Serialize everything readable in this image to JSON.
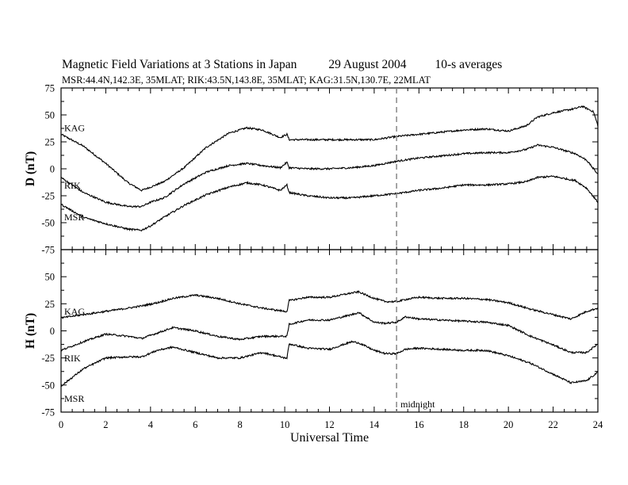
{
  "header": {
    "title": "Magnetic Field Variations at 3 Stations in Japan",
    "date": "29  August  2004",
    "averaging": "10-s averages",
    "stations_line": "MSR:44.4N,142.3E, 35MLAT;  RIK:43.5N,143.8E, 35MLAT;  KAG:31.5N,130.7E, 22MLAT"
  },
  "chart_data": [
    {
      "type": "line",
      "panel": "D",
      "ylabel": "D (nT)",
      "xlabel": "",
      "xlim": [
        0,
        24
      ],
      "ylim": [
        -75,
        75
      ],
      "yticks": [
        75,
        50,
        25,
        0,
        -25,
        -50,
        -75
      ],
      "xticks": [
        0,
        2,
        4,
        6,
        8,
        10,
        12,
        14,
        16,
        18,
        20,
        22,
        24
      ],
      "series": [
        {
          "name": "KAG",
          "x": [
            0,
            1,
            2,
            3,
            3.6,
            4,
            4.6,
            5.5,
            6.5,
            7.5,
            8.3,
            9,
            9.8,
            10.1,
            10.2,
            11,
            12,
            13,
            14,
            15,
            16,
            17,
            18,
            19,
            20,
            20.8,
            21.3,
            22,
            23,
            23.3,
            23.8,
            24
          ],
          "y": [
            32,
            21,
            5,
            -13,
            -20,
            -17,
            -12,
            1,
            20,
            33,
            38,
            36,
            29,
            32,
            27,
            27,
            27,
            27,
            27,
            30,
            32,
            34,
            36,
            37,
            35,
            40,
            48,
            52,
            56,
            58,
            53,
            40
          ]
        },
        {
          "name": "RIK",
          "x": [
            0,
            1,
            2,
            3,
            3.6,
            4,
            4.6,
            5.5,
            6.5,
            7.5,
            8.3,
            9,
            9.8,
            10.1,
            10.2,
            11,
            12,
            13,
            14,
            15,
            16,
            17,
            18,
            19,
            20,
            20.8,
            21.3,
            22,
            23,
            23.5,
            24
          ],
          "y": [
            -8,
            -22,
            -31,
            -35,
            -35,
            -31,
            -27,
            -14,
            -3,
            3,
            5,
            3,
            1,
            6,
            1,
            0,
            0,
            1,
            3,
            7,
            10,
            12,
            14,
            15,
            15,
            18,
            22,
            20,
            14,
            8,
            -5
          ]
        },
        {
          "name": "MSR",
          "x": [
            0,
            1,
            2,
            3,
            3.6,
            4,
            4.6,
            5.5,
            6.5,
            7.5,
            8.3,
            9,
            9.8,
            10.1,
            10.2,
            11,
            12,
            13,
            14,
            15,
            16,
            17,
            18,
            19,
            20,
            20.8,
            21.3,
            22,
            23,
            23.5,
            24
          ],
          "y": [
            -33,
            -45,
            -51,
            -56,
            -57,
            -53,
            -45,
            -34,
            -24,
            -17,
            -13,
            -15,
            -20,
            -15,
            -22,
            -25,
            -27,
            -27,
            -25,
            -23,
            -20,
            -18,
            -15,
            -15,
            -14,
            -12,
            -8,
            -7,
            -11,
            -18,
            -31
          ]
        }
      ]
    },
    {
      "type": "line",
      "panel": "H",
      "ylabel": "H (nT)",
      "xlabel": "Universal Time",
      "xlim": [
        0,
        24
      ],
      "ylim": [
        -75,
        75
      ],
      "yticks": [
        75,
        50,
        25,
        0,
        -25,
        -50,
        -75
      ],
      "xticks": [
        0,
        2,
        4,
        6,
        8,
        10,
        12,
        14,
        16,
        18,
        20,
        22,
        24
      ],
      "series": [
        {
          "name": "KAG",
          "x": [
            0,
            1,
            2,
            3,
            3.6,
            4.3,
            5,
            6,
            7,
            8,
            9,
            10,
            10.1,
            10.2,
            11,
            12,
            13,
            13.3,
            14,
            14.5,
            15,
            15.4,
            16,
            17,
            18,
            19,
            20,
            21,
            22,
            22.8,
            23.5,
            24
          ],
          "y": [
            12,
            15,
            18,
            21,
            23,
            26,
            30,
            33,
            30,
            25,
            21,
            18,
            18,
            28,
            31,
            31,
            35,
            36,
            30,
            27,
            27,
            29,
            31,
            30,
            30,
            29,
            26,
            20,
            15,
            11,
            18,
            21
          ]
        },
        {
          "name": "RIK",
          "x": [
            0,
            1,
            2,
            3,
            3.6,
            4.3,
            5,
            6,
            7,
            8,
            9,
            10,
            10.1,
            10.2,
            11,
            12,
            13,
            13.3,
            14,
            14.5,
            15,
            15.4,
            16,
            17,
            18,
            19,
            20,
            21,
            22,
            22.8,
            23.5,
            24
          ],
          "y": [
            -18,
            -10,
            -3,
            -5,
            -7,
            -2,
            3,
            0,
            -5,
            -8,
            -5,
            -5,
            -5,
            6,
            10,
            10,
            15,
            17,
            8,
            7,
            8,
            13,
            11,
            10,
            9,
            8,
            5,
            -5,
            -13,
            -20,
            -20,
            -12
          ]
        },
        {
          "name": "MSR",
          "x": [
            0,
            1,
            2,
            3,
            3.6,
            4.3,
            5,
            6,
            7,
            8,
            9,
            10,
            10.1,
            10.2,
            11,
            12,
            13,
            13.3,
            14,
            14.5,
            15,
            15.4,
            16,
            17,
            18,
            19,
            20,
            21,
            22,
            22.8,
            23.5,
            24
          ],
          "y": [
            -51,
            -35,
            -25,
            -24,
            -24,
            -18,
            -15,
            -20,
            -25,
            -25,
            -20,
            -25,
            -25,
            -12,
            -16,
            -17,
            -10,
            -11,
            -18,
            -21,
            -21,
            -17,
            -16,
            -17,
            -18,
            -18,
            -23,
            -30,
            -40,
            -48,
            -46,
            -38
          ]
        }
      ]
    }
  ],
  "annotations": {
    "midnight_label": "midnight",
    "midnight_ut": 15
  }
}
